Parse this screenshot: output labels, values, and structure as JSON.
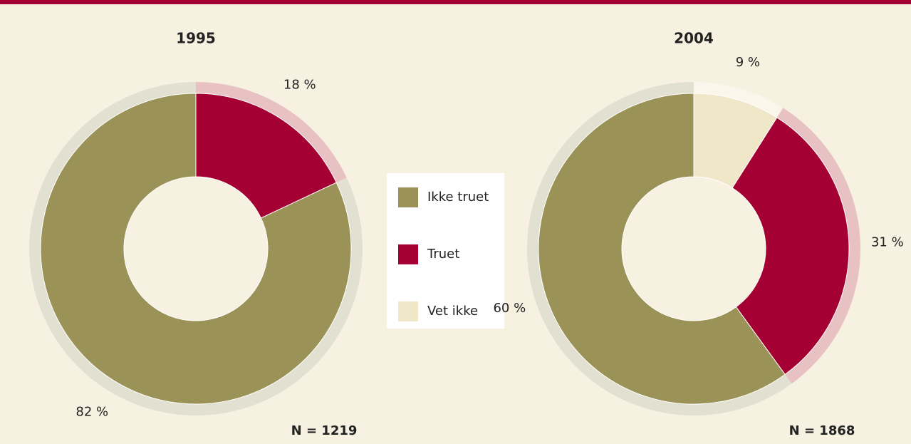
{
  "chart_data": [
    {
      "type": "pie",
      "title": "1995",
      "categories": [
        "Ikke truet",
        "Truet"
      ],
      "values": [
        82,
        18
      ],
      "value_labels": [
        "82 %",
        "18 %"
      ],
      "colors": [
        "#9a9256",
        "#a50034"
      ],
      "ring_colors": [
        "#e2e0d1",
        "#e8c2c2"
      ],
      "note": "N = 1219"
    },
    {
      "type": "pie",
      "title": "2004",
      "categories": [
        "Ikke truet",
        "Truet",
        "Vet ikke"
      ],
      "values": [
        60,
        31,
        9
      ],
      "value_labels": [
        "60 %",
        "31 %",
        "9 %"
      ],
      "colors": [
        "#9a9256",
        "#a50034",
        "#f0e6c8"
      ],
      "ring_colors": [
        "#e2e0d1",
        "#e8c2c2",
        "#faf6ec"
      ],
      "note": "N = 1868"
    }
  ]
}
